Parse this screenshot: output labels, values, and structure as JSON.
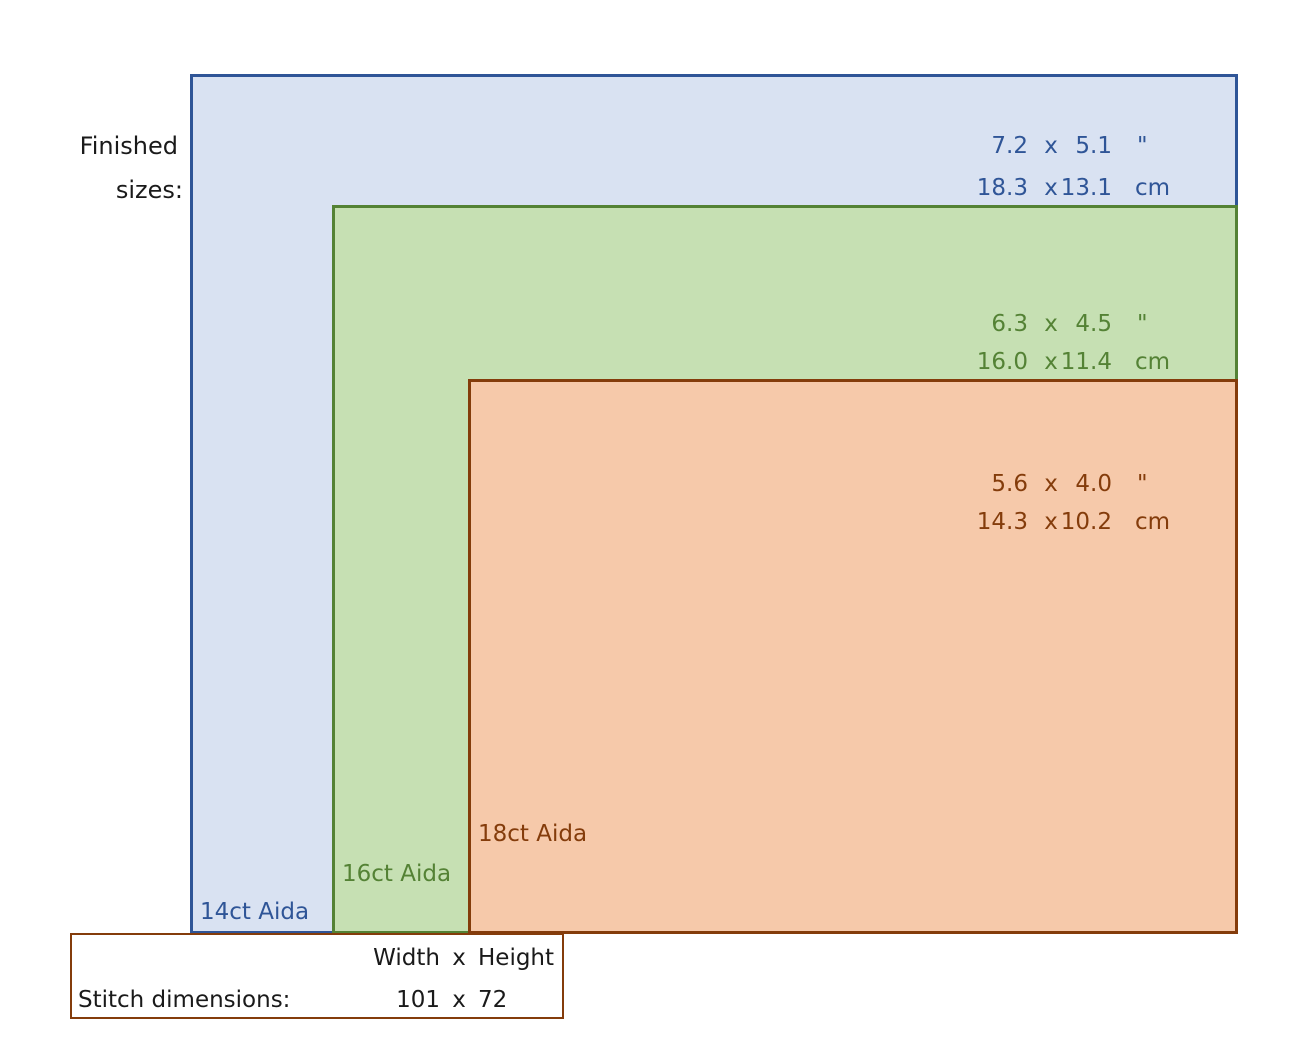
{
  "finished_label": [
    "Finished",
    "sizes:"
  ],
  "fabrics": [
    {
      "label": "14ct Aida",
      "color": "#2f5597",
      "fill": "#d9e2f2",
      "inches": {
        "w": "7.2",
        "x": "x",
        "h": "5.1",
        "unit": "\""
      },
      "cm": {
        "w": "18.3",
        "x": "x",
        "h": "13.1",
        "unit": "cm"
      }
    },
    {
      "label": "16ct Aida",
      "color": "#548235",
      "fill": "#c6e0b3",
      "inches": {
        "w": "6.3",
        "x": "x",
        "h": "4.5",
        "unit": "\""
      },
      "cm": {
        "w": "16.0",
        "x": "x",
        "h": "11.4",
        "unit": "cm"
      }
    },
    {
      "label": "18ct Aida",
      "color": "#843c0b",
      "fill": "#f6c9aa",
      "inches": {
        "w": "5.6",
        "x": "x",
        "h": "4.0",
        "unit": "\""
      },
      "cm": {
        "w": "14.3",
        "x": "x",
        "h": "10.2",
        "unit": "cm"
      }
    }
  ],
  "stitch": {
    "header_w": "Width",
    "header_x": "x",
    "header_h": "Height",
    "label": "Stitch dimensions:",
    "w": "101",
    "x": "x",
    "h": "72"
  }
}
